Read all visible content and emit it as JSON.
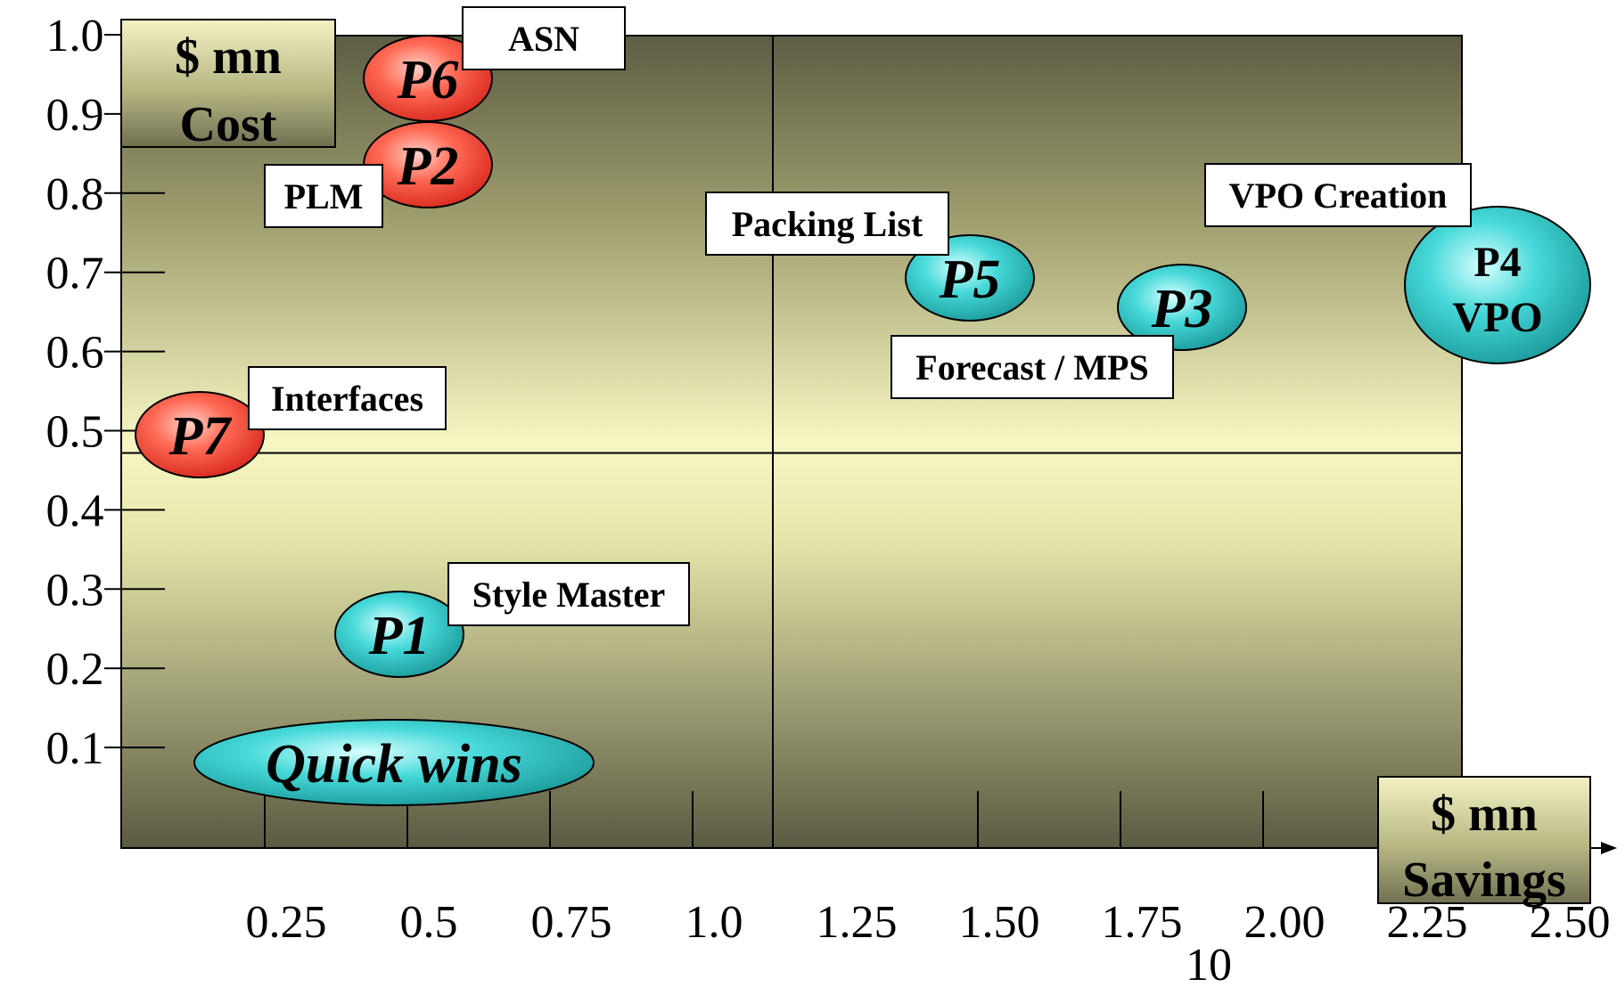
{
  "chart_data": {
    "type": "scatter",
    "title": "",
    "y_axis": {
      "unit_lines": [
        "$ mn",
        "Cost"
      ],
      "ticks": [
        "1.0",
        "0.9",
        "0.8",
        "0.7",
        "0.6",
        "0.5",
        "0.4",
        "0.3",
        "0.2",
        "0.1"
      ],
      "range": [
        0,
        1.0
      ]
    },
    "x_axis": {
      "unit_lines": [
        "$ mn",
        "Savings"
      ],
      "ticks": [
        "0.25",
        "0.5",
        "0.75",
        "1.0",
        "1.25",
        "1.50",
        "1.75",
        "2.00",
        "2.25",
        "2.50"
      ],
      "extra_label": "10",
      "range": [
        0,
        2.5
      ]
    },
    "quadrant_dividers": {
      "x": 1.25,
      "y": 0.5
    },
    "points": [
      {
        "id": "P1",
        "x": 0.48,
        "y": 0.26,
        "color": "teal",
        "callout": "Style Master"
      },
      {
        "id": "P2",
        "x": 0.55,
        "y": 0.85,
        "color": "red",
        "callout": "PLM"
      },
      {
        "id": "P3",
        "x": 1.95,
        "y": 0.66,
        "color": "teal",
        "callout": "Forecast / MPS"
      },
      {
        "id": "P4",
        "x": 2.5,
        "y": 0.68,
        "color": "teal",
        "label_lines": [
          "P4",
          "VPO"
        ],
        "callout": "VPO Creation"
      },
      {
        "id": "P5",
        "x": 1.56,
        "y": 0.7,
        "color": "teal",
        "callout": "Packing List"
      },
      {
        "id": "P6",
        "x": 0.55,
        "y": 0.95,
        "color": "red",
        "callout": "ASN"
      },
      {
        "id": "P7",
        "x": 0.13,
        "y": 0.52,
        "color": "red",
        "callout": "Interfaces"
      }
    ],
    "annotations": [
      {
        "text": "Quick wins",
        "x": 0.41,
        "y": 0.11
      }
    ],
    "colors": {
      "red": "#e8382c",
      "teal": "#2fc8c8",
      "plot_dark": "#5d5d45",
      "plot_light": "#f8f8c4"
    }
  }
}
